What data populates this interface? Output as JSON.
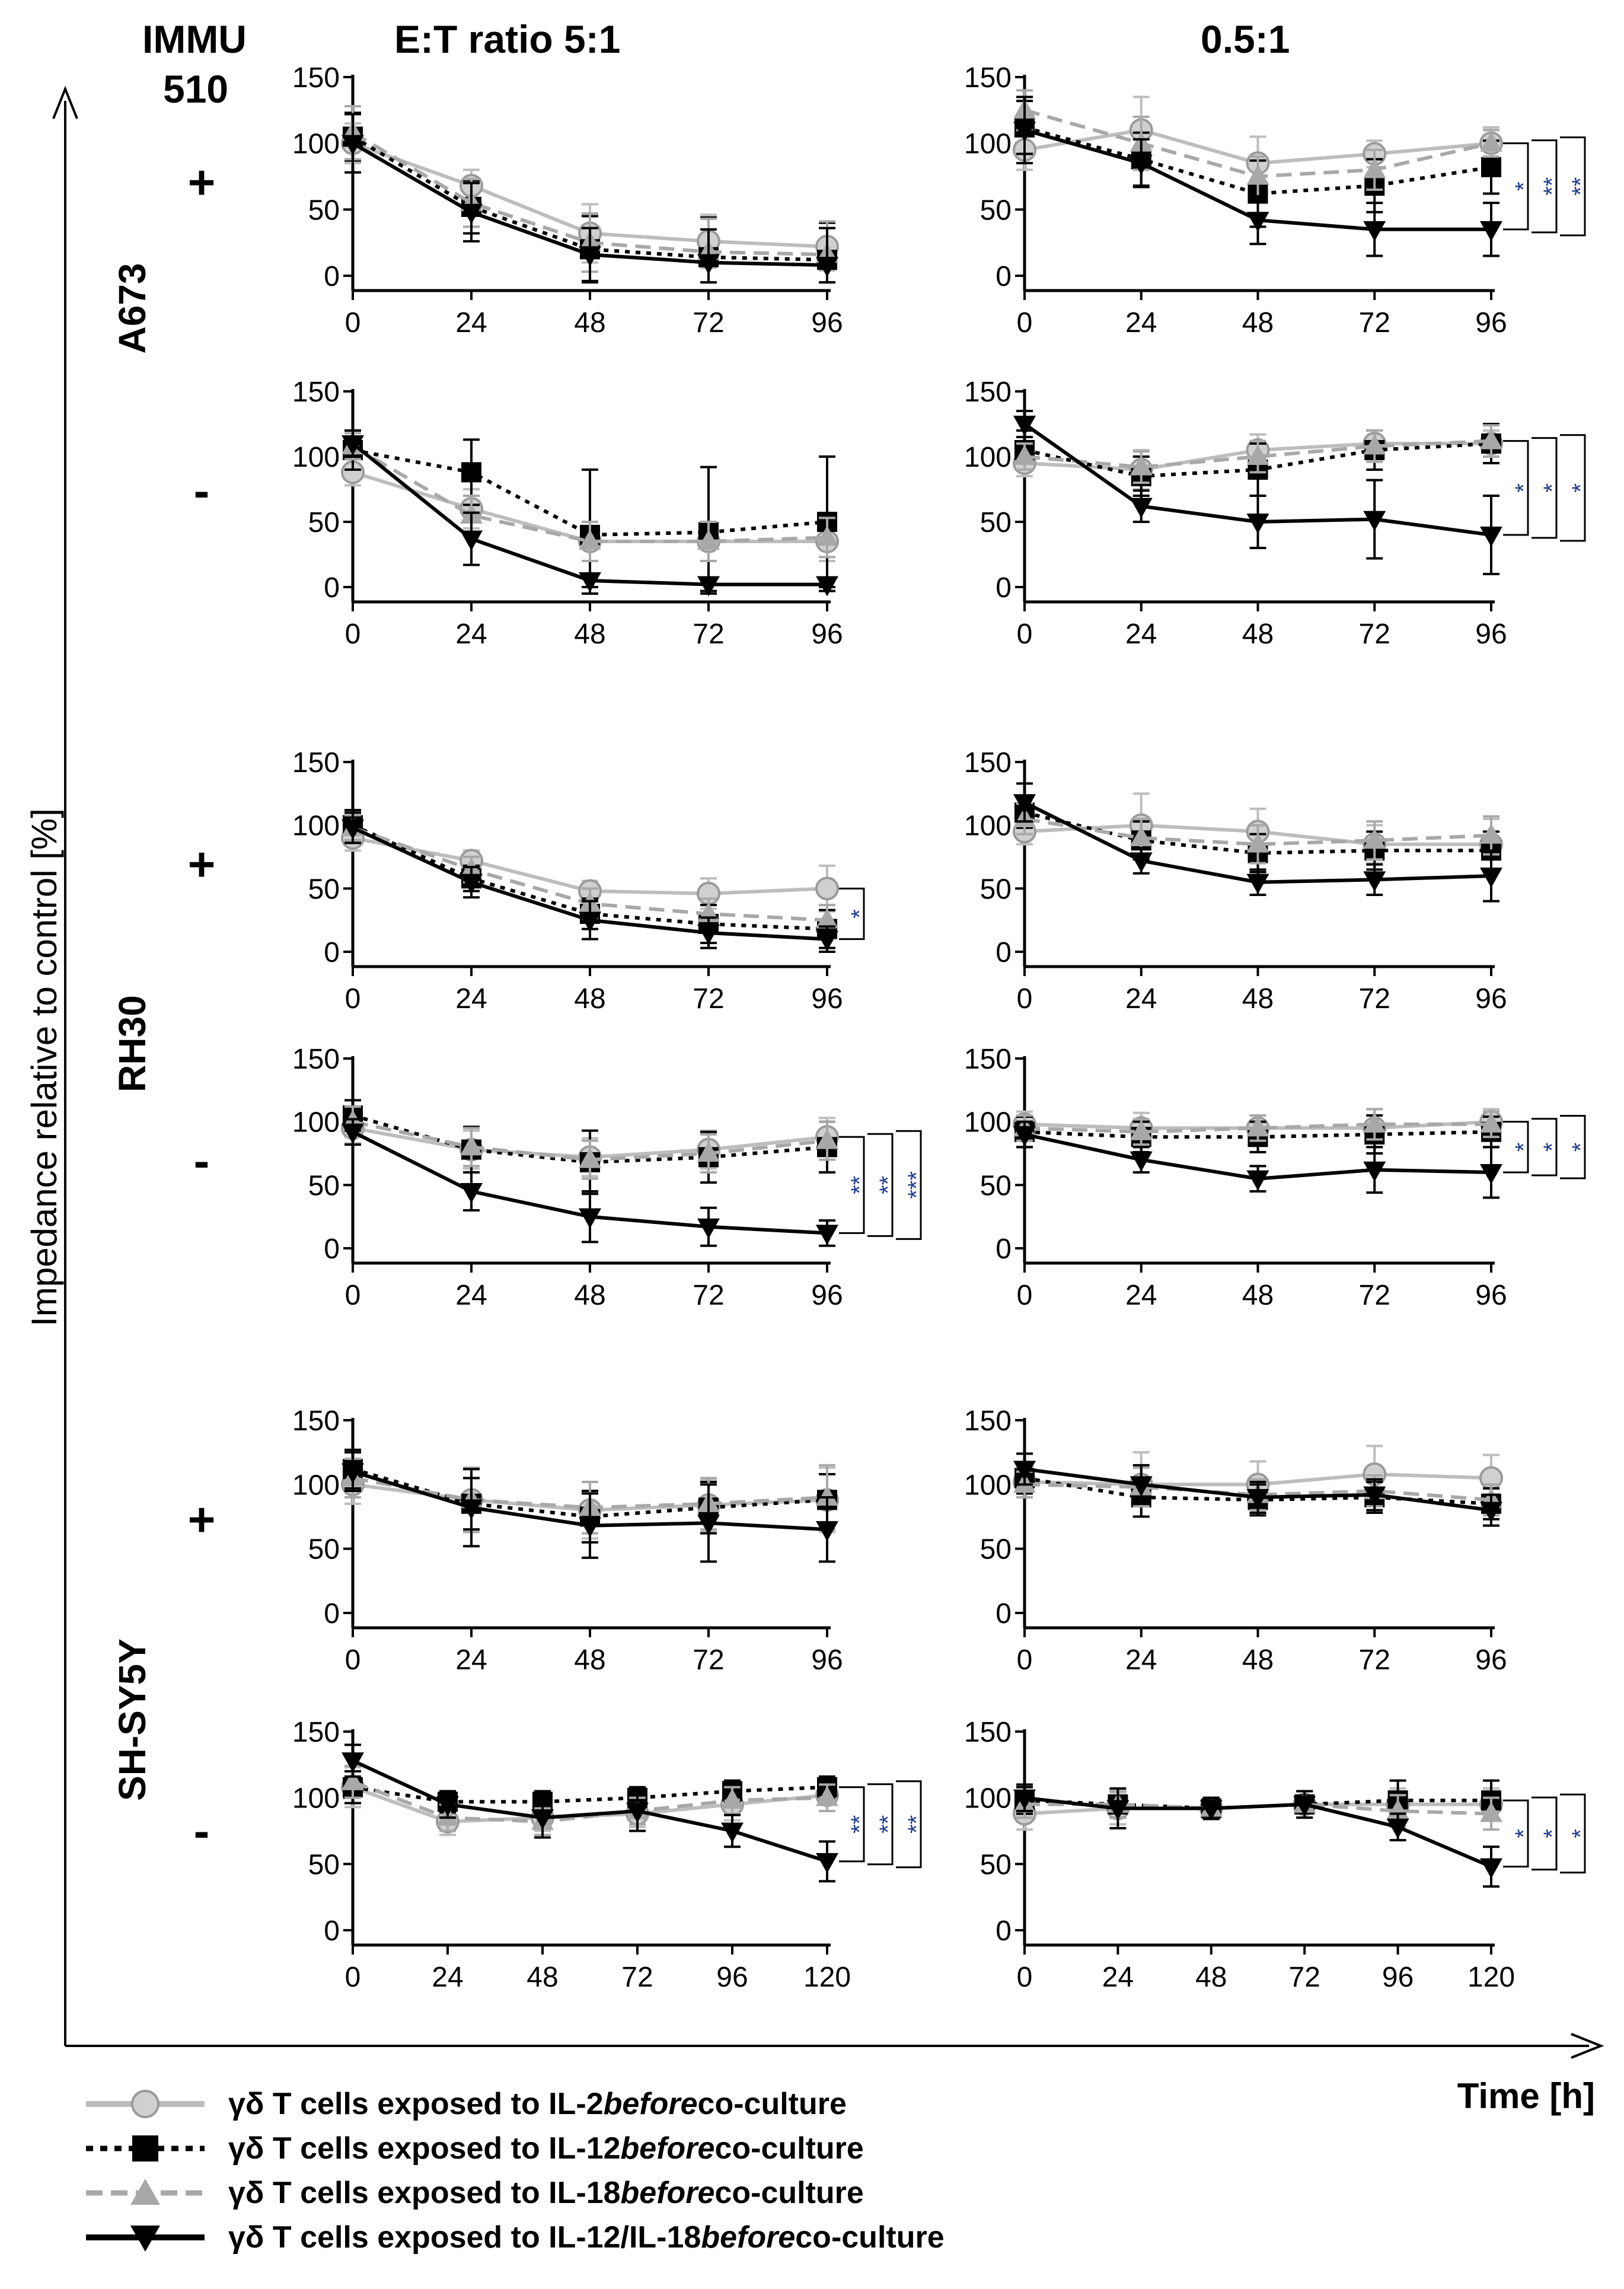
{
  "header": {
    "immu_line1": "IMMU",
    "immu_line2": "510",
    "col1": "E:T ratio  5:1",
    "col2": "0.5:1"
  },
  "axes": {
    "y_title": "Impedance relative to control [%]",
    "x_title": "Time [h]"
  },
  "row_groups": [
    {
      "label": "A673"
    },
    {
      "label": "RH30"
    },
    {
      "label": "SH-SY5Y"
    }
  ],
  "immu_signs": [
    "+",
    "-",
    "+",
    "-",
    "+",
    "-"
  ],
  "legend": [
    {
      "symbol": "γδ T cells exposed to IL-2 ",
      "emph": "before",
      "tail": " co-culture"
    },
    {
      "symbol": "γδ T cells exposed to IL-12 ",
      "emph": "before",
      "tail": " co-culture"
    },
    {
      "symbol": "γδ T cells exposed to IL-18 ",
      "emph": "before",
      "tail": " co-culture"
    },
    {
      "symbol": "γδ T cells exposed to IL-12/IL-18 ",
      "emph": "before",
      "tail": " co-culture"
    }
  ],
  "series_style": [
    {
      "name": "IL-2",
      "color": "#bdbdbd",
      "dash": "solid",
      "marker": "circle"
    },
    {
      "name": "IL-12",
      "color": "#000000",
      "dash": "dotted",
      "marker": "square"
    },
    {
      "name": "IL-18",
      "color": "#a8a8a8",
      "dash": "dashed",
      "marker": "triangle-up"
    },
    {
      "name": "IL-12/IL-18",
      "color": "#000000",
      "dash": "solid",
      "marker": "triangle-down"
    }
  ],
  "chart_data": [
    {
      "type": "line",
      "panel": "A673 + 5:1",
      "x": [
        0,
        24,
        48,
        72,
        96
      ],
      "ylim": [
        0,
        150
      ],
      "yticks": [
        0,
        50,
        100,
        150
      ],
      "series": [
        {
          "name": "IL-2",
          "values": [
            100,
            68,
            32,
            26,
            22
          ],
          "err": [
            15,
            12,
            22,
            20,
            18
          ]
        },
        {
          "name": "IL-12",
          "values": [
            105,
            52,
            20,
            14,
            12
          ],
          "err": [
            18,
            20,
            25,
            30,
            28
          ]
        },
        {
          "name": "IL-18",
          "values": [
            108,
            55,
            25,
            18,
            16
          ],
          "err": [
            20,
            18,
            22,
            25,
            25
          ]
        },
        {
          "name": "IL-12/IL-18",
          "values": [
            100,
            48,
            16,
            10,
            8
          ],
          "err": [
            22,
            22,
            20,
            25,
            28
          ]
        }
      ],
      "significance": []
    },
    {
      "type": "line",
      "panel": "A673 + 0.5:1",
      "x": [
        0,
        24,
        48,
        72,
        96
      ],
      "ylim": [
        0,
        150
      ],
      "yticks": [
        0,
        50,
        100,
        150
      ],
      "series": [
        {
          "name": "IL-2",
          "values": [
            95,
            110,
            85,
            92,
            100
          ],
          "err": [
            15,
            25,
            20,
            10,
            12
          ]
        },
        {
          "name": "IL-12",
          "values": [
            112,
            88,
            62,
            68,
            82
          ],
          "err": [
            20,
            20,
            25,
            20,
            20
          ]
        },
        {
          "name": "IL-18",
          "values": [
            125,
            100,
            75,
            80,
            100
          ],
          "err": [
            15,
            20,
            15,
            15,
            10
          ]
        },
        {
          "name": "IL-12/IL-18",
          "values": [
            110,
            85,
            42,
            35,
            35
          ],
          "err": [
            25,
            18,
            18,
            20,
            20
          ]
        }
      ],
      "significance": [
        "*",
        "**",
        "**"
      ]
    },
    {
      "type": "line",
      "panel": "A673 - 5:1",
      "x": [
        0,
        24,
        48,
        72,
        96
      ],
      "ylim": [
        0,
        150
      ],
      "yticks": [
        0,
        50,
        100,
        150
      ],
      "series": [
        {
          "name": "IL-2",
          "values": [
            88,
            60,
            35,
            35,
            35
          ],
          "err": [
            10,
            15,
            15,
            15,
            15
          ]
        },
        {
          "name": "IL-12",
          "values": [
            105,
            88,
            40,
            42,
            50
          ],
          "err": [
            15,
            25,
            50,
            50,
            50
          ]
        },
        {
          "name": "IL-18",
          "values": [
            108,
            55,
            35,
            35,
            38
          ],
          "err": [
            10,
            15,
            15,
            15,
            15
          ]
        },
        {
          "name": "IL-12/IL-18",
          "values": [
            110,
            37,
            5,
            2,
            2
          ],
          "err": [
            10,
            20,
            5,
            5,
            5
          ]
        }
      ],
      "significance": []
    },
    {
      "type": "line",
      "panel": "A673 - 0.5:1",
      "x": [
        0,
        24,
        48,
        72,
        96
      ],
      "ylim": [
        0,
        150
      ],
      "yticks": [
        0,
        50,
        100,
        150
      ],
      "series": [
        {
          "name": "IL-2",
          "values": [
            95,
            90,
            105,
            110,
            110
          ],
          "err": [
            10,
            15,
            12,
            10,
            10
          ]
        },
        {
          "name": "IL-12",
          "values": [
            105,
            85,
            90,
            105,
            110
          ],
          "err": [
            15,
            15,
            20,
            15,
            15
          ]
        },
        {
          "name": "IL-18",
          "values": [
            100,
            92,
            100,
            108,
            112
          ],
          "err": [
            10,
            12,
            12,
            12,
            12
          ]
        },
        {
          "name": "IL-12/IL-18",
          "values": [
            125,
            62,
            50,
            52,
            40
          ],
          "err": [
            10,
            12,
            20,
            30,
            30
          ]
        }
      ],
      "significance": [
        "*",
        "*",
        "*"
      ]
    },
    {
      "type": "line",
      "panel": "RH30 + 5:1",
      "x": [
        0,
        24,
        48,
        72,
        96
      ],
      "ylim": [
        0,
        150
      ],
      "yticks": [
        0,
        50,
        100,
        150
      ],
      "series": [
        {
          "name": "IL-2",
          "values": [
            90,
            72,
            48,
            46,
            50
          ],
          "err": [
            10,
            8,
            8,
            12,
            18
          ]
        },
        {
          "name": "IL-12",
          "values": [
            100,
            58,
            30,
            22,
            18
          ],
          "err": [
            12,
            10,
            12,
            15,
            15
          ]
        },
        {
          "name": "IL-18",
          "values": [
            98,
            65,
            38,
            30,
            25
          ],
          "err": [
            10,
            10,
            12,
            12,
            12
          ]
        },
        {
          "name": "IL-12/IL-18",
          "values": [
            98,
            55,
            25,
            15,
            10
          ],
          "err": [
            12,
            12,
            15,
            12,
            10
          ]
        }
      ],
      "significance": [
        "*"
      ]
    },
    {
      "type": "line",
      "panel": "RH30 + 0.5:1",
      "x": [
        0,
        24,
        48,
        72,
        96
      ],
      "ylim": [
        0,
        150
      ],
      "yticks": [
        0,
        50,
        100,
        150
      ],
      "series": [
        {
          "name": "IL-2",
          "values": [
            95,
            100,
            95,
            85,
            85
          ],
          "err": [
            10,
            25,
            18,
            15,
            20
          ]
        },
        {
          "name": "IL-12",
          "values": [
            110,
            88,
            78,
            80,
            80
          ],
          "err": [
            12,
            15,
            15,
            15,
            15
          ]
        },
        {
          "name": "IL-18",
          "values": [
            105,
            90,
            85,
            88,
            92
          ],
          "err": [
            12,
            15,
            15,
            15,
            15
          ]
        },
        {
          "name": "IL-12/IL-18",
          "values": [
            118,
            72,
            55,
            57,
            60
          ],
          "err": [
            15,
            10,
            10,
            12,
            20
          ]
        }
      ],
      "significance": []
    },
    {
      "type": "line",
      "panel": "RH30 - 5:1",
      "x": [
        0,
        24,
        48,
        72,
        96
      ],
      "ylim": [
        0,
        150
      ],
      "yticks": [
        0,
        50,
        100,
        150
      ],
      "series": [
        {
          "name": "IL-2",
          "values": [
            95,
            78,
            72,
            78,
            88
          ],
          "err": [
            12,
            15,
            15,
            15,
            15
          ]
        },
        {
          "name": "IL-12",
          "values": [
            105,
            78,
            68,
            72,
            80
          ],
          "err": [
            12,
            18,
            25,
            20,
            20
          ]
        },
        {
          "name": "IL-18",
          "values": [
            100,
            80,
            70,
            75,
            85
          ],
          "err": [
            12,
            15,
            15,
            15,
            15
          ]
        },
        {
          "name": "IL-12/IL-18",
          "values": [
            92,
            45,
            25,
            17,
            12
          ],
          "err": [
            10,
            15,
            20,
            15,
            10
          ]
        }
      ],
      "significance": [
        "**",
        "**",
        "***"
      ]
    },
    {
      "type": "line",
      "panel": "RH30 - 0.5:1",
      "x": [
        0,
        24,
        48,
        72,
        96
      ],
      "ylim": [
        0,
        150
      ],
      "yticks": [
        0,
        50,
        100,
        150
      ],
      "series": [
        {
          "name": "IL-2",
          "values": [
            98,
            95,
            95,
            95,
            100
          ],
          "err": [
            10,
            12,
            10,
            15,
            10
          ]
        },
        {
          "name": "IL-12",
          "values": [
            92,
            88,
            88,
            90,
            92
          ],
          "err": [
            12,
            12,
            12,
            15,
            12
          ]
        },
        {
          "name": "IL-18",
          "values": [
            95,
            92,
            95,
            98,
            98
          ],
          "err": [
            10,
            10,
            10,
            12,
            10
          ]
        },
        {
          "name": "IL-12/IL-18",
          "values": [
            90,
            70,
            55,
            62,
            60
          ],
          "err": [
            10,
            10,
            10,
            18,
            20
          ]
        }
      ],
      "significance": [
        "*",
        "*",
        "*"
      ]
    },
    {
      "type": "line",
      "panel": "SH-SY5Y + 5:1",
      "x": [
        0,
        24,
        48,
        72,
        96
      ],
      "ylim": [
        0,
        150
      ],
      "yticks": [
        0,
        50,
        100,
        150
      ],
      "series": [
        {
          "name": "IL-2",
          "values": [
            100,
            88,
            80,
            84,
            88
          ],
          "err": [
            15,
            25,
            22,
            20,
            25
          ]
        },
        {
          "name": "IL-12",
          "values": [
            112,
            85,
            75,
            82,
            88
          ],
          "err": [
            15,
            20,
            20,
            20,
            20
          ]
        },
        {
          "name": "IL-18",
          "values": [
            105,
            88,
            82,
            85,
            90
          ],
          "err": [
            15,
            25,
            20,
            20,
            25
          ]
        },
        {
          "name": "IL-12/IL-18",
          "values": [
            110,
            82,
            68,
            70,
            65
          ],
          "err": [
            15,
            30,
            25,
            30,
            25
          ]
        }
      ],
      "significance": []
    },
    {
      "type": "line",
      "panel": "SH-SY5Y + 0.5:1",
      "x": [
        0,
        24,
        48,
        72,
        96
      ],
      "ylim": [
        0,
        150
      ],
      "yticks": [
        0,
        50,
        100,
        150
      ],
      "series": [
        {
          "name": "IL-2",
          "values": [
            102,
            100,
            100,
            108,
            105
          ],
          "err": [
            12,
            25,
            18,
            22,
            18
          ]
        },
        {
          "name": "IL-12",
          "values": [
            105,
            90,
            88,
            90,
            85
          ],
          "err": [
            12,
            15,
            12,
            12,
            12
          ]
        },
        {
          "name": "IL-18",
          "values": [
            100,
            98,
            92,
            95,
            88
          ],
          "err": [
            10,
            15,
            12,
            12,
            12
          ]
        },
        {
          "name": "IL-12/IL-18",
          "values": [
            112,
            100,
            90,
            92,
            80
          ],
          "err": [
            12,
            15,
            12,
            12,
            12
          ]
        }
      ],
      "significance": []
    },
    {
      "type": "line",
      "panel": "SH-SY5Y - 5:1",
      "x": [
        0,
        24,
        48,
        72,
        96,
        120
      ],
      "ylim": [
        0,
        150
      ],
      "yticks": [
        0,
        50,
        100,
        150
      ],
      "series": [
        {
          "name": "IL-2",
          "values": [
            108,
            82,
            85,
            88,
            95,
            102
          ],
          "err": [
            15,
            10,
            10,
            10,
            12,
            12
          ]
        },
        {
          "name": "IL-12",
          "values": [
            108,
            97,
            97,
            100,
            105,
            108
          ],
          "err": [
            12,
            8,
            8,
            8,
            8,
            8
          ]
        },
        {
          "name": "IL-18",
          "values": [
            112,
            85,
            82,
            90,
            98,
            100
          ],
          "err": [
            12,
            10,
            10,
            10,
            10,
            10
          ]
        },
        {
          "name": "IL-12/IL-18",
          "values": [
            128,
            95,
            85,
            90,
            75,
            52
          ],
          "err": [
            12,
            10,
            15,
            15,
            12,
            15
          ]
        }
      ],
      "significance": [
        "**",
        "**",
        "**"
      ]
    },
    {
      "type": "line",
      "panel": "SH-SY5Y - 0.5:1",
      "x": [
        0,
        24,
        48,
        72,
        96,
        120
      ],
      "ylim": [
        0,
        150
      ],
      "yticks": [
        0,
        50,
        100,
        150
      ],
      "series": [
        {
          "name": "IL-2",
          "values": [
            88,
            92,
            92,
            95,
            95,
            95
          ],
          "err": [
            12,
            12,
            8,
            10,
            12,
            12
          ]
        },
        {
          "name": "IL-12",
          "values": [
            98,
            95,
            92,
            95,
            98,
            98
          ],
          "err": [
            10,
            10,
            8,
            10,
            15,
            15
          ]
        },
        {
          "name": "IL-18",
          "values": [
            95,
            95,
            92,
            95,
            90,
            88
          ],
          "err": [
            10,
            10,
            8,
            10,
            12,
            12
          ]
        },
        {
          "name": "IL-12/IL-18",
          "values": [
            100,
            92,
            92,
            95,
            78,
            48
          ],
          "err": [
            10,
            15,
            8,
            10,
            10,
            15
          ]
        }
      ],
      "significance": [
        "*",
        "*",
        "*"
      ]
    }
  ]
}
